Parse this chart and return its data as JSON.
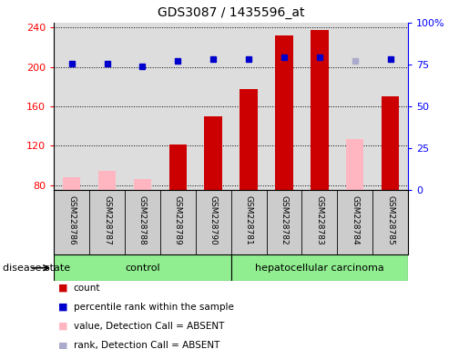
{
  "title": "GDS3087 / 1435596_at",
  "samples": [
    "GSM228786",
    "GSM228787",
    "GSM228788",
    "GSM228789",
    "GSM228790",
    "GSM228781",
    "GSM228782",
    "GSM228783",
    "GSM228784",
    "GSM228785"
  ],
  "count_values": [
    null,
    null,
    null,
    121,
    150,
    178,
    232,
    238,
    null,
    170
  ],
  "count_absent_values": [
    88,
    95,
    86,
    null,
    null,
    null,
    null,
    null,
    127,
    null
  ],
  "percentile_values": [
    203,
    203,
    201,
    206,
    208,
    208,
    210,
    210,
    null,
    208
  ],
  "percentile_absent_values": [
    null,
    null,
    null,
    null,
    null,
    null,
    null,
    null,
    206,
    null
  ],
  "ylim_left": [
    75,
    245
  ],
  "ylim_right": [
    0,
    100
  ],
  "left_ticks": [
    80,
    120,
    160,
    200,
    240
  ],
  "right_ticks": [
    0,
    25,
    50,
    75,
    100
  ],
  "right_tick_labels": [
    "0",
    "25",
    "50",
    "75",
    "100%"
  ],
  "bar_color_present": "#CC0000",
  "bar_color_absent": "#FFB6C1",
  "dot_color_present": "#0000CC",
  "dot_color_absent": "#AAAACC",
  "legend_items": [
    {
      "label": "count",
      "color": "#CC0000"
    },
    {
      "label": "percentile rank within the sample",
      "color": "#0000CC"
    },
    {
      "label": "value, Detection Call = ABSENT",
      "color": "#FFB6C1"
    },
    {
      "label": "rank, Detection Call = ABSENT",
      "color": "#AAAACC"
    }
  ],
  "plot_bg": "#DDDDDD",
  "sample_bg": "#CCCCCC",
  "group_color": "#90EE90",
  "n_control": 5,
  "n_hcc": 5
}
